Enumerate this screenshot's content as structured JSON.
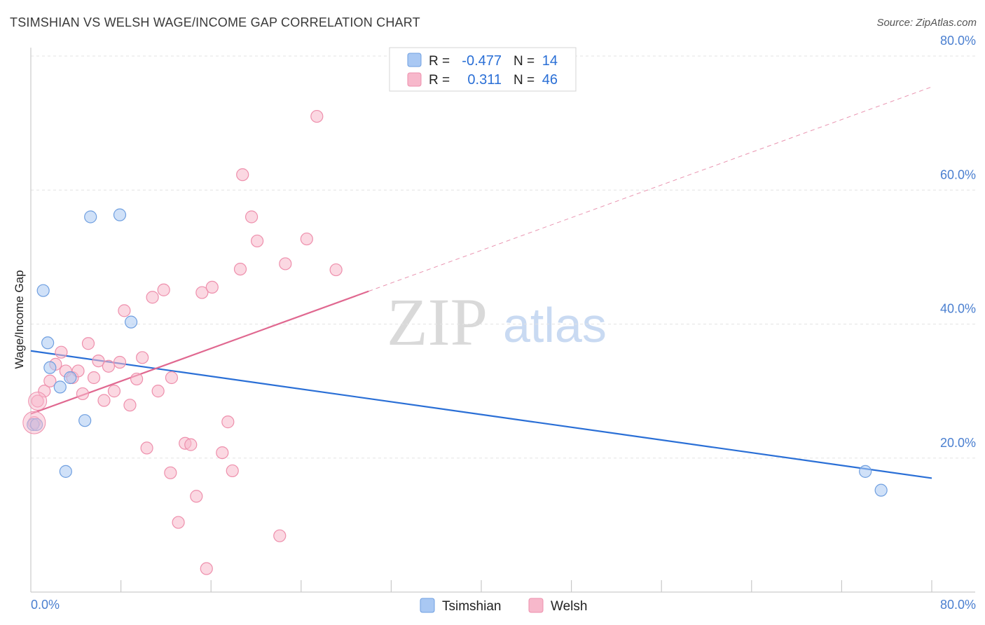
{
  "header": {
    "title": "TSIMSHIAN VS WELSH WAGE/INCOME GAP CORRELATION CHART",
    "source": "Source: ZipAtlas.com"
  },
  "watermark": {
    "zip": "ZIP",
    "atlas": "atlas"
  },
  "stats_box": {
    "rows": [
      {
        "r_label": "R =",
        "r_value": "-0.477",
        "n_label": "N =",
        "n_value": "14",
        "color": "#a9c8f3"
      },
      {
        "r_label": "R =",
        "r_value": "0.311",
        "n_label": "N =",
        "n_value": "46",
        "color": "#f7b8cb"
      }
    ]
  },
  "chart_data": {
    "type": "scatter",
    "title": "TSIMSHIAN VS WELSH WAGE/INCOME GAP CORRELATION CHART",
    "xlabel": "",
    "ylabel": "Wage/Income Gap",
    "xlim": [
      0,
      80
    ],
    "ylim": [
      0,
      80
    ],
    "x_tick_labels": [
      "0.0%",
      "80.0%"
    ],
    "y_tick_labels": [
      "20.0%",
      "40.0%",
      "60.0%",
      "80.0%"
    ],
    "y_ticks": [
      20,
      40,
      60,
      80
    ],
    "grid": true,
    "legend_position": "bottom-center",
    "series": [
      {
        "name": "Tsimshian",
        "color": "#a9c8f3",
        "stroke": "#6f9fe0",
        "line_color": "#2a6fd6",
        "points": [
          [
            0.2,
            25.0
          ],
          [
            1.1,
            45.0
          ],
          [
            1.5,
            37.2
          ],
          [
            1.7,
            33.5
          ],
          [
            2.6,
            30.6
          ],
          [
            3.5,
            32.0
          ],
          [
            3.1,
            18.0
          ],
          [
            4.8,
            25.6
          ],
          [
            5.3,
            56.0
          ],
          [
            7.9,
            56.3
          ],
          [
            8.9,
            40.3
          ],
          [
            74.1,
            18.0
          ],
          [
            75.5,
            15.2
          ],
          [
            0.5,
            25.0
          ]
        ],
        "trend": {
          "x0": 0,
          "y0": 36.0,
          "x1": 80,
          "y1": 17.0,
          "dashed_to": 80
        }
      },
      {
        "name": "Welsh",
        "color": "#f7b8cb",
        "stroke": "#ee8fac",
        "line_color": "#e06890",
        "points": [
          [
            0.3,
            25.3
          ],
          [
            0.6,
            28.5
          ],
          [
            1.2,
            30.0
          ],
          [
            1.7,
            31.5
          ],
          [
            2.2,
            34.0
          ],
          [
            2.7,
            35.8
          ],
          [
            3.1,
            33.0
          ],
          [
            3.7,
            32.0
          ],
          [
            4.2,
            33.0
          ],
          [
            4.6,
            29.6
          ],
          [
            5.1,
            37.1
          ],
          [
            5.6,
            32.0
          ],
          [
            6.0,
            34.5
          ],
          [
            6.5,
            28.6
          ],
          [
            6.9,
            33.7
          ],
          [
            7.4,
            30.0
          ],
          [
            7.9,
            34.3
          ],
          [
            8.3,
            42.0
          ],
          [
            8.8,
            27.9
          ],
          [
            9.4,
            31.8
          ],
          [
            9.9,
            35.0
          ],
          [
            10.3,
            21.5
          ],
          [
            10.8,
            44.0
          ],
          [
            11.3,
            30.0
          ],
          [
            11.8,
            45.1
          ],
          [
            12.4,
            17.8
          ],
          [
            12.5,
            32.0
          ],
          [
            13.1,
            10.4
          ],
          [
            13.7,
            22.2
          ],
          [
            14.2,
            22.0
          ],
          [
            14.7,
            14.3
          ],
          [
            15.2,
            44.7
          ],
          [
            15.6,
            3.5
          ],
          [
            16.1,
            45.5
          ],
          [
            17.0,
            20.8
          ],
          [
            17.5,
            25.4
          ],
          [
            17.9,
            18.1
          ],
          [
            18.6,
            48.2
          ],
          [
            18.8,
            62.3
          ],
          [
            19.6,
            56.0
          ],
          [
            20.1,
            52.4
          ],
          [
            22.6,
            49.0
          ],
          [
            22.1,
            8.4
          ],
          [
            24.5,
            52.7
          ],
          [
            25.4,
            71.0
          ],
          [
            27.1,
            48.1
          ]
        ],
        "trend": {
          "x0": 0,
          "y0": 26.6,
          "x1": 30,
          "y1": 44.9,
          "dashed_to": 80
        }
      }
    ]
  }
}
